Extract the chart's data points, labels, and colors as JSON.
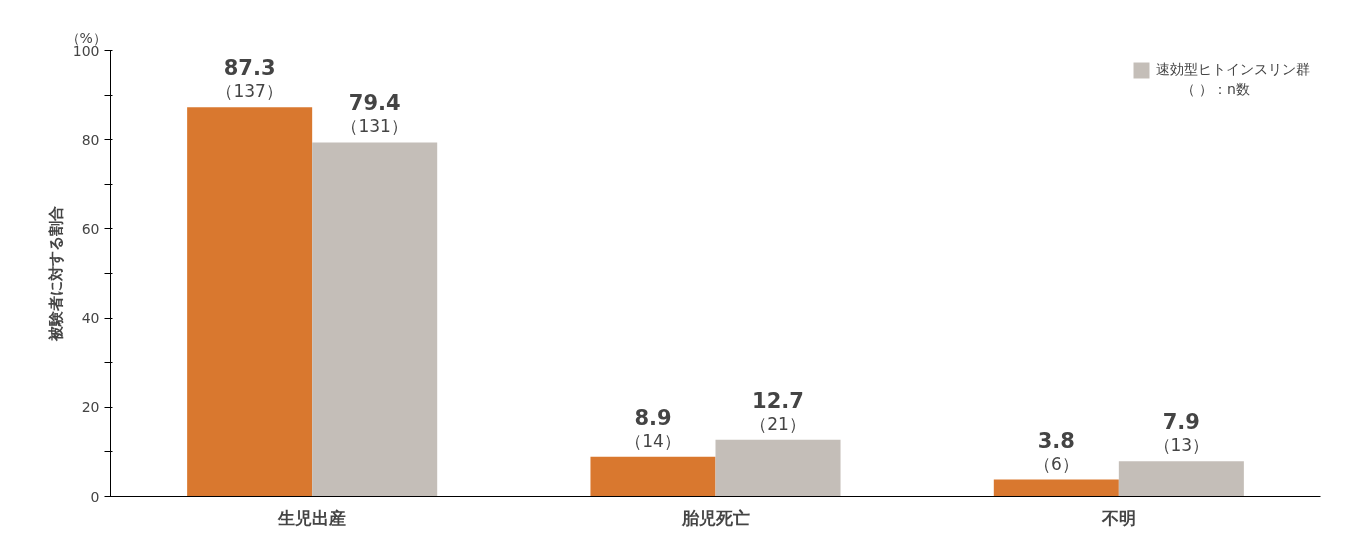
{
  "chart_data": {
    "type": "bar",
    "ylabel": "被験者に対する割合",
    "categories": [
      "生児出産",
      "胎児死亡",
      "不明"
    ],
    "series": [
      {
        "color": "#d9782f",
        "values": [
          87.3,
          8.9,
          3.8
        ],
        "value_labels": [
          "87.3\n（137）",
          "8.9\n（14）",
          "3.8\n（6）"
        ]
      },
      {
        "name": "速効型ヒトインスリン群",
        "color": "#c4beb8",
        "values": [
          79.4,
          12.7,
          7.9
        ],
        "value_labels": [
          "79.4\n（131）",
          "12.7\n（21）",
          "7.9\n（13）"
        ]
      }
    ],
    "ylim": [
      0,
      100
    ],
    "yticks": [
      0,
      {
        "value": 10,
        "label": null
      },
      20,
      {
        "value": 30,
        "label": null
      },
      40,
      {
        "value": 50,
        "label": null
      },
      60,
      {
        "value": 70,
        "label": null
      },
      80,
      {
        "value": 90,
        "label": null
      },
      100
    ],
    "annotations": [
      "（%）",
      "（ ）：n数"
    ],
    "legend": "top right",
    "grid": false
  }
}
